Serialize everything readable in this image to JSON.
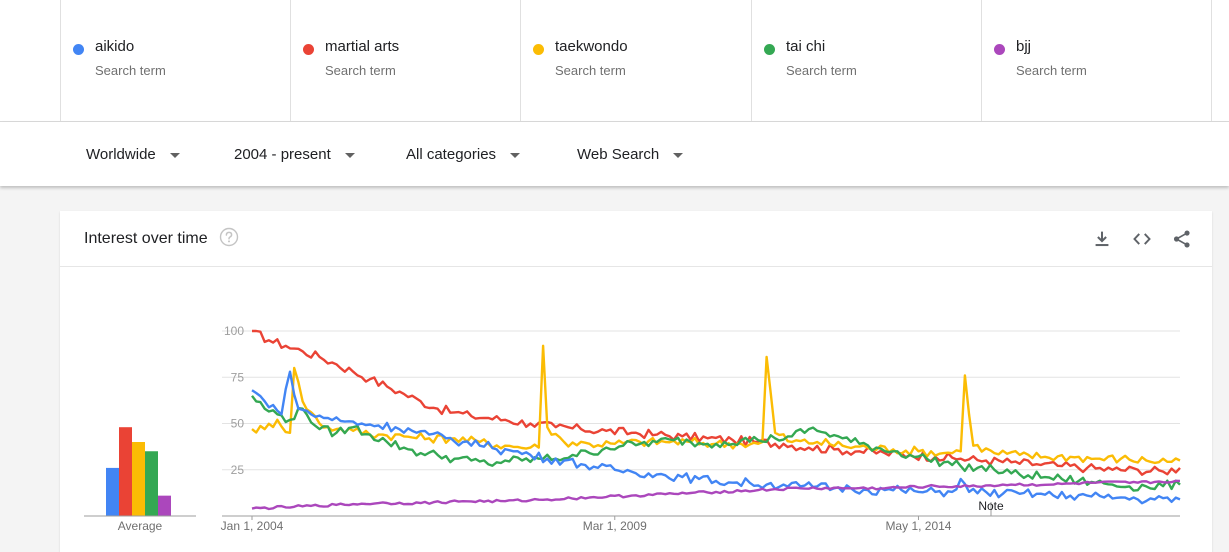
{
  "terms": [
    {
      "name": "aikido",
      "sublabel": "Search term",
      "color": "#4285f4"
    },
    {
      "name": "martial arts",
      "sublabel": "Search term",
      "color": "#ea4335"
    },
    {
      "name": "taekwondo",
      "sublabel": "Search term",
      "color": "#fbbc04"
    },
    {
      "name": "tai chi",
      "sublabel": "Search term",
      "color": "#34a853"
    },
    {
      "name": "bjj",
      "sublabel": "Search term",
      "color": "#ab47bc"
    }
  ],
  "filters": {
    "region": "Worldwide",
    "time_range": "2004 - present",
    "category": "All categories",
    "search_type": "Web Search"
  },
  "card": {
    "title": "Interest over time",
    "icons": [
      "help-circle-icon",
      "download-icon",
      "embed-code-icon",
      "share-icon"
    ]
  },
  "chart_data": {
    "type": "line",
    "title": "Interest over time",
    "x_tick_labels": [
      "Jan 1, 2004",
      "Mar 1, 2009",
      "May 1, 2014"
    ],
    "y_ticks": [
      25,
      50,
      75,
      100
    ],
    "ylim": [
      0,
      100
    ],
    "grid": true,
    "annotation": "Note",
    "average_label": "Average",
    "averages": [
      {
        "term": "aikido",
        "value": 26,
        "color": "#4285f4"
      },
      {
        "term": "martial arts",
        "value": 48,
        "color": "#ea4335"
      },
      {
        "term": "taekwondo",
        "value": 40,
        "color": "#fbbc04"
      },
      {
        "term": "tai chi",
        "value": 35,
        "color": "#34a853"
      },
      {
        "term": "bjj",
        "value": 11,
        "color": "#ab47bc"
      }
    ],
    "x_start": "2004-01",
    "x_end": "2018-01",
    "series": [
      {
        "name": "martial arts",
        "color": "#ea4335",
        "anchors": [
          [
            0,
            100
          ],
          [
            4,
            95
          ],
          [
            8,
            92
          ],
          [
            12,
            89
          ],
          [
            16,
            86
          ],
          [
            20,
            82
          ],
          [
            24,
            78
          ],
          [
            28,
            74
          ],
          [
            32,
            70
          ],
          [
            36,
            66
          ],
          [
            40,
            62
          ],
          [
            44,
            58
          ],
          [
            48,
            56
          ],
          [
            52,
            54
          ],
          [
            56,
            53
          ],
          [
            60,
            52
          ],
          [
            66,
            50
          ],
          [
            72,
            48
          ],
          [
            78,
            47
          ],
          [
            84,
            46
          ],
          [
            90,
            45
          ],
          [
            96,
            44
          ],
          [
            102,
            43
          ],
          [
            108,
            42
          ],
          [
            114,
            41
          ],
          [
            120,
            40
          ],
          [
            126,
            39
          ],
          [
            132,
            37
          ],
          [
            138,
            36
          ],
          [
            144,
            35
          ],
          [
            150,
            34
          ],
          [
            156,
            33
          ],
          [
            162,
            32
          ],
          [
            168,
            31
          ],
          [
            174,
            30
          ],
          [
            180,
            29
          ],
          [
            186,
            28
          ],
          [
            192,
            27
          ],
          [
            198,
            26
          ],
          [
            204,
            25
          ],
          [
            210,
            25
          ],
          [
            216,
            24
          ],
          [
            220,
            26
          ]
        ]
      },
      {
        "name": "taekwondo",
        "color": "#fbbc04",
        "anchors": [
          [
            0,
            47
          ],
          [
            3,
            47
          ],
          [
            6,
            52
          ],
          [
            9,
            45
          ],
          [
            10,
            80
          ],
          [
            12,
            62
          ],
          [
            16,
            50
          ],
          [
            20,
            47
          ],
          [
            24,
            46
          ],
          [
            30,
            44
          ],
          [
            36,
            43
          ],
          [
            42,
            42
          ],
          [
            48,
            42
          ],
          [
            54,
            40
          ],
          [
            60,
            38
          ],
          [
            66,
            37
          ],
          [
            68,
            37
          ],
          [
            69,
            92
          ],
          [
            70,
            48
          ],
          [
            74,
            40
          ],
          [
            80,
            39
          ],
          [
            86,
            39
          ],
          [
            92,
            40
          ],
          [
            98,
            40
          ],
          [
            104,
            40
          ],
          [
            110,
            39
          ],
          [
            116,
            39
          ],
          [
            120,
            39
          ],
          [
            121,
            40
          ],
          [
            122,
            86
          ],
          [
            124,
            45
          ],
          [
            128,
            40
          ],
          [
            134,
            40
          ],
          [
            140,
            38
          ],
          [
            146,
            37
          ],
          [
            152,
            36
          ],
          [
            158,
            35
          ],
          [
            164,
            34
          ],
          [
            168,
            35
          ],
          [
            169,
            76
          ],
          [
            171,
            38
          ],
          [
            176,
            34
          ],
          [
            182,
            33
          ],
          [
            188,
            32
          ],
          [
            194,
            32
          ],
          [
            200,
            31
          ],
          [
            206,
            31
          ],
          [
            212,
            30
          ],
          [
            220,
            30
          ]
        ]
      },
      {
        "name": "tai chi",
        "color": "#34a853",
        "anchors": [
          [
            0,
            65
          ],
          [
            3,
            58
          ],
          [
            6,
            55
          ],
          [
            9,
            52
          ],
          [
            12,
            58
          ],
          [
            16,
            47
          ],
          [
            20,
            45
          ],
          [
            24,
            48
          ],
          [
            28,
            44
          ],
          [
            32,
            40
          ],
          [
            36,
            37
          ],
          [
            40,
            34
          ],
          [
            44,
            33
          ],
          [
            48,
            31
          ],
          [
            52,
            30
          ],
          [
            56,
            28
          ],
          [
            60,
            30
          ],
          [
            64,
            30
          ],
          [
            68,
            31
          ],
          [
            72,
            31
          ],
          [
            76,
            33
          ],
          [
            80,
            34
          ],
          [
            84,
            37
          ],
          [
            88,
            38
          ],
          [
            92,
            39
          ],
          [
            96,
            40
          ],
          [
            100,
            41
          ],
          [
            104,
            40
          ],
          [
            108,
            39
          ],
          [
            112,
            40
          ],
          [
            116,
            41
          ],
          [
            120,
            41
          ],
          [
            124,
            42
          ],
          [
            128,
            43
          ],
          [
            132,
            47
          ],
          [
            136,
            45
          ],
          [
            140,
            42
          ],
          [
            144,
            39
          ],
          [
            148,
            37
          ],
          [
            152,
            35
          ],
          [
            156,
            33
          ],
          [
            160,
            31
          ],
          [
            164,
            29
          ],
          [
            168,
            27
          ],
          [
            172,
            26
          ],
          [
            176,
            25
          ],
          [
            180,
            23
          ],
          [
            184,
            22
          ],
          [
            188,
            21
          ],
          [
            192,
            20
          ],
          [
            196,
            19
          ],
          [
            200,
            18
          ],
          [
            204,
            17
          ],
          [
            208,
            16
          ],
          [
            212,
            16
          ],
          [
            220,
            17
          ]
        ]
      },
      {
        "name": "aikido",
        "color": "#4285f4",
        "anchors": [
          [
            0,
            68
          ],
          [
            3,
            62
          ],
          [
            5,
            60
          ],
          [
            7,
            55
          ],
          [
            9,
            78
          ],
          [
            11,
            58
          ],
          [
            14,
            55
          ],
          [
            18,
            53
          ],
          [
            22,
            51
          ],
          [
            26,
            50
          ],
          [
            30,
            49
          ],
          [
            34,
            48
          ],
          [
            38,
            46
          ],
          [
            42,
            44
          ],
          [
            46,
            42
          ],
          [
            50,
            40
          ],
          [
            54,
            38
          ],
          [
            56,
            40
          ],
          [
            58,
            36
          ],
          [
            62,
            35
          ],
          [
            66,
            33
          ],
          [
            70,
            31
          ],
          [
            74,
            30
          ],
          [
            78,
            28
          ],
          [
            82,
            26
          ],
          [
            86,
            25
          ],
          [
            90,
            24
          ],
          [
            94,
            23
          ],
          [
            98,
            22
          ],
          [
            102,
            21
          ],
          [
            106,
            20
          ],
          [
            110,
            19
          ],
          [
            114,
            18
          ],
          [
            118,
            18
          ],
          [
            122,
            17
          ],
          [
            126,
            17
          ],
          [
            130,
            16
          ],
          [
            134,
            16
          ],
          [
            138,
            15
          ],
          [
            142,
            15
          ],
          [
            146,
            14
          ],
          [
            150,
            14
          ],
          [
            154,
            14
          ],
          [
            158,
            13
          ],
          [
            162,
            13
          ],
          [
            166,
            13
          ],
          [
            168,
            20
          ],
          [
            170,
            13
          ],
          [
            174,
            13
          ],
          [
            178,
            12
          ],
          [
            182,
            12
          ],
          [
            186,
            12
          ],
          [
            190,
            11
          ],
          [
            194,
            11
          ],
          [
            198,
            11
          ],
          [
            202,
            10
          ],
          [
            206,
            10
          ],
          [
            210,
            9
          ],
          [
            214,
            9
          ],
          [
            220,
            9
          ]
        ]
      },
      {
        "name": "bjj",
        "color": "#ab47bc",
        "anchors": [
          [
            0,
            4
          ],
          [
            10,
            5
          ],
          [
            20,
            6
          ],
          [
            30,
            7
          ],
          [
            40,
            7
          ],
          [
            50,
            8
          ],
          [
            60,
            8
          ],
          [
            70,
            9
          ],
          [
            80,
            10
          ],
          [
            90,
            11
          ],
          [
            100,
            12
          ],
          [
            110,
            13
          ],
          [
            120,
            14
          ],
          [
            130,
            15
          ],
          [
            140,
            15
          ],
          [
            150,
            15
          ],
          [
            160,
            16
          ],
          [
            170,
            16
          ],
          [
            180,
            17
          ],
          [
            190,
            17
          ],
          [
            200,
            18
          ],
          [
            210,
            18
          ],
          [
            220,
            19
          ]
        ]
      }
    ]
  }
}
